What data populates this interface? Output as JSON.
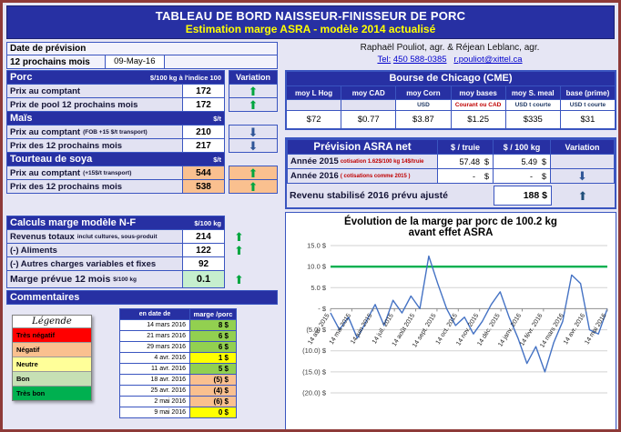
{
  "title": {
    "line1": "TABLEAU DE BORD NAISSEUR-FINISSEUR DE PORC",
    "line2": "Estimation marge ASRA - modèle 2014 actualisé"
  },
  "info": {
    "date_label": "Date de prévision",
    "period": "12 prochains mois",
    "date_value": "09-May-16",
    "authors": "Raphaël Pouliot, agr.   &   Réjean Leblanc, agr.",
    "tel_label": "Tel:",
    "tel_number": "450 588-0385",
    "email": "r.pouliot@xittel.ca"
  },
  "porc": {
    "title": "Porc",
    "unit": "$/100 kg à l'indice 100",
    "variation_label": "Variation",
    "rows": [
      {
        "label": "Prix au comptant",
        "note": "",
        "value": "172",
        "arrow": "up",
        "bg": "#FFFFFF"
      },
      {
        "label": "Prix de pool 12 prochains mois",
        "note": "",
        "value": "172",
        "arrow": "up",
        "bg": "#FFFFFF"
      }
    ]
  },
  "mais": {
    "title": "Maïs",
    "unit": "$/t",
    "rows": [
      {
        "label": "Prix au comptant",
        "note": "(FOB +15 $/t transport)",
        "value": "210",
        "arrow": "down",
        "bg": "#FFFFFF"
      },
      {
        "label": "Prix des 12 prochains mois",
        "note": "",
        "value": "217",
        "arrow": "down",
        "bg": "#FFFFFF"
      }
    ]
  },
  "soya": {
    "title": "Tourteau de soya",
    "unit": "$/t",
    "rows": [
      {
        "label": "Prix au comptant",
        "note": "(+15$/t transport)",
        "value": "544",
        "arrow": "up",
        "bg": "#FAC08F"
      },
      {
        "label": "Prix des 12 prochains mois",
        "note": "",
        "value": "538",
        "arrow": "up",
        "bg": "#FAC08F"
      }
    ]
  },
  "calculs": {
    "title": "Calculs marge  modèle N-F",
    "unit": "$/100 kg",
    "rows": [
      {
        "label": "Revenus totaux",
        "note": "inclut cultures, sous-produit",
        "value": "214",
        "arrow": "up"
      },
      {
        "label": "(-) Aliments",
        "note": "",
        "value": "122",
        "arrow": "up"
      },
      {
        "label": "(-) Autres charges variables et fixes",
        "note": "",
        "value": "92",
        "arrow": ""
      }
    ],
    "marge": {
      "label": "Marge prévue 12 mois",
      "unit": "$/100 kg",
      "value": "0.1",
      "arrow": "up",
      "bg": "#C6EFCE"
    }
  },
  "commentaires": {
    "title": "Commentaires",
    "legende": {
      "title": "Légende",
      "items": [
        {
          "label": "Très négatif",
          "color": "#FF0000"
        },
        {
          "label": "Négatif",
          "color": "#FAC08F"
        },
        {
          "label": "Neutre",
          "color": "#FFFF99"
        },
        {
          "label": "Bon",
          "color": "#C6E0B4"
        },
        {
          "label": "Très bon",
          "color": "#00B050"
        }
      ]
    },
    "table": {
      "date_header": "en date de",
      "value_header": "marge /porc",
      "rows": [
        {
          "date": "14 mars 2016",
          "value": "8 $",
          "color": "#92D050"
        },
        {
          "date": "21 mars 2016",
          "value": "6 $",
          "color": "#92D050"
        },
        {
          "date": "29 mars 2016",
          "value": "6 $",
          "color": "#92D050"
        },
        {
          "date": "4 avr. 2016",
          "value": "1 $",
          "color": "#FFFF00"
        },
        {
          "date": "11 avr. 2016",
          "value": "5 $",
          "color": "#92D050"
        },
        {
          "date": "18 avr. 2016",
          "value": "(5) $",
          "color": "#FAC08F"
        },
        {
          "date": "25 avr. 2016",
          "value": "(4) $",
          "color": "#FAC08F"
        },
        {
          "date": "2 mai 2016",
          "value": "(6) $",
          "color": "#FAC08F"
        },
        {
          "date": "9 mai 2016",
          "value": "0 $",
          "color": "#FFFF00"
        }
      ]
    }
  },
  "bourse": {
    "title": "Bourse de Chicago (CME)",
    "columns": [
      {
        "header": "moy L Hog",
        "sub": "",
        "value": "$72"
      },
      {
        "header": "moy CAD",
        "sub": "",
        "value": "$0.77"
      },
      {
        "header": "moy Corn",
        "sub": "USD",
        "value": "$3.87"
      },
      {
        "header": "moy bases",
        "sub": "Courant ou CAD",
        "value": "$1.25"
      },
      {
        "header": "moy S. meal",
        "sub": "USD t courte",
        "value": "$335"
      },
      {
        "header": "base (prime)",
        "sub": "USD t courte",
        "value": "$31"
      }
    ]
  },
  "asra": {
    "title": "Prévision ASRA net",
    "col_truie": "$ / truie",
    "col_kg": "$ / 100 kg",
    "col_var": "Variation",
    "rows": [
      {
        "label": "Année 2015",
        "note": "cotisation 1.62$/100 kg 14$/truie",
        "truie": "57.48  $",
        "kg": "5.49  $",
        "arrow": ""
      },
      {
        "label": "Année 2016",
        "note": "( cotisations comme 2015 )",
        "truie": "-    $",
        "kg": "-    $",
        "arrow": "down"
      }
    ],
    "revenu": {
      "label": "Revenu stabilisé 2016 prévu  ajusté",
      "value": "188 $",
      "arrow": "up"
    }
  },
  "chart_data": {
    "type": "line",
    "title": "Évolution de la marge par porc de 100.2 kg",
    "subtitle": "avant effet ASRA",
    "ylim": [
      -20,
      15
    ],
    "yticks": [
      15,
      10,
      5,
      0,
      -5,
      -10,
      -15,
      -20
    ],
    "ytick_labels": [
      "15.0 $",
      "10.0 $",
      "5.0 $",
      "-  $",
      "(5.0) $",
      "(10.0) $",
      "(15.0) $",
      "(20.0) $"
    ],
    "x_labels": [
      "14 avr. 2015",
      "14 mai 2015",
      "14 juin 2015",
      "14 juil. 2015",
      "14 août 2015",
      "14 sept. 2015",
      "14 oct. 2015",
      "14 nov. 2015",
      "14 déc. 2015",
      "14 janv. 2016",
      "14 févr. 2016",
      "14 mars 2016",
      "14 avr. 2016",
      "14 mai 2016"
    ],
    "grid": "horizontal",
    "legend": "none",
    "reference_line": {
      "value": 10,
      "color": "#00B050"
    },
    "series": [
      {
        "name": "marge par porc ($)",
        "color": "#4472C4",
        "values": [
          -1,
          -5,
          -2,
          -7,
          -3,
          1,
          -4,
          2,
          -1,
          3,
          0,
          12.5,
          6,
          0,
          -4,
          -2,
          -6,
          -3,
          1,
          4,
          -2,
          -7,
          -13,
          -9,
          -15,
          -8,
          -3,
          8,
          6,
          -5,
          -6,
          0
        ]
      }
    ]
  }
}
